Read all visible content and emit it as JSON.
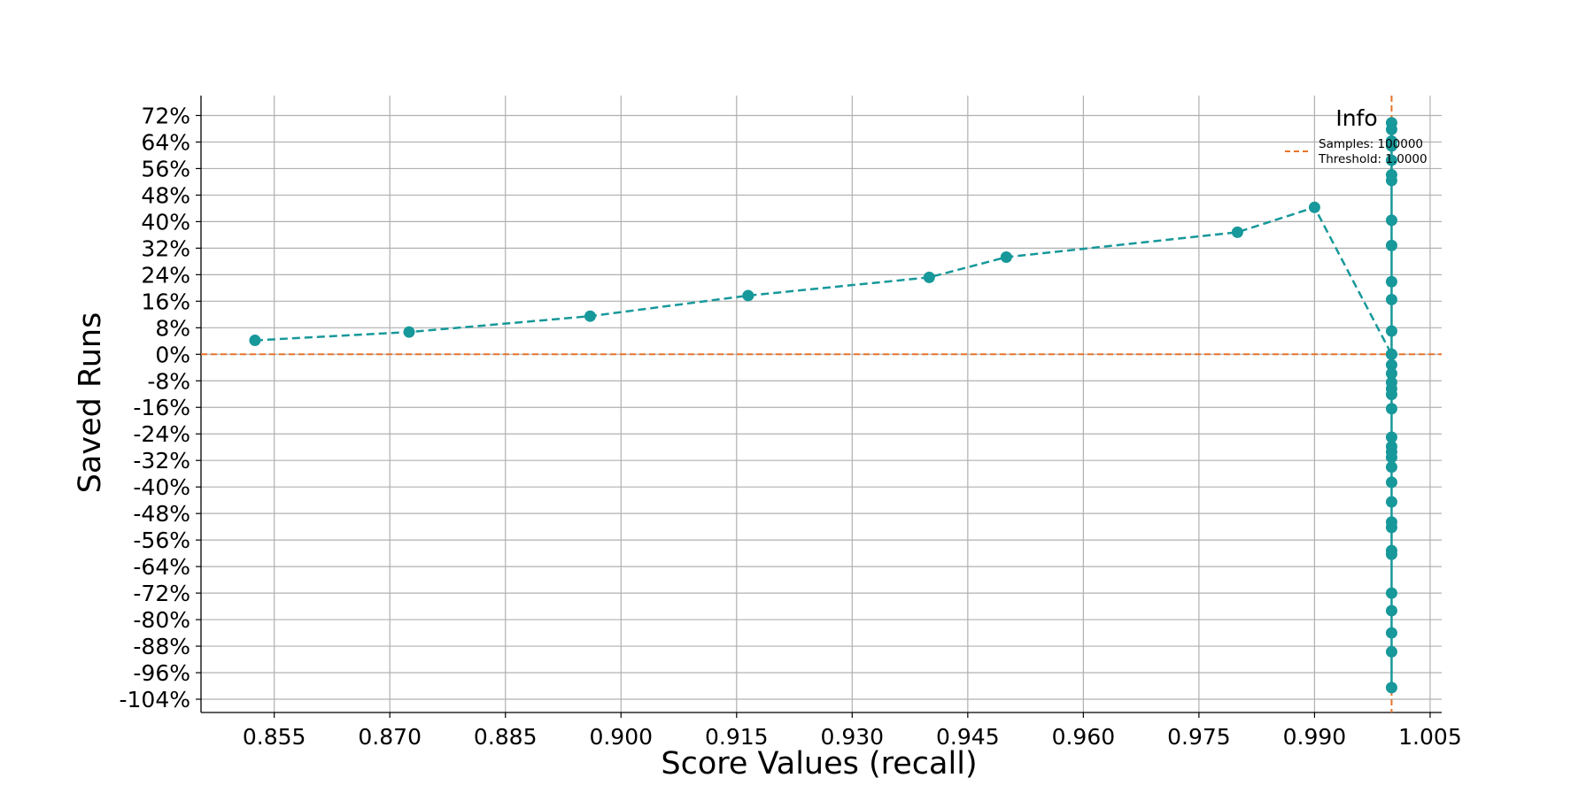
{
  "chart_data": {
    "type": "line",
    "title": "",
    "xlabel": "Score Values (recall)",
    "ylabel": "Saved Runs",
    "xlim": [
      0.8455,
      1.0065
    ],
    "ylim": [
      -108,
      78
    ],
    "x_ticks": [
      "0.855",
      "0.870",
      "0.885",
      "0.900",
      "0.915",
      "0.930",
      "0.945",
      "0.960",
      "0.975",
      "0.990",
      "1.005"
    ],
    "y_ticks": [
      "72%",
      "64%",
      "56%",
      "48%",
      "40%",
      "32%",
      "24%",
      "16%",
      "8%",
      "0%",
      "-8%",
      "-16%",
      "-24%",
      "-32%",
      "-40%",
      "-48%",
      "-56%",
      "-64%",
      "-72%",
      "-80%",
      "-88%",
      "-96%",
      "-104%"
    ],
    "y_tick_values": [
      72,
      64,
      56,
      48,
      40,
      32,
      24,
      16,
      8,
      0,
      -8,
      -16,
      -24,
      -32,
      -40,
      -48,
      -56,
      -64,
      -72,
      -80,
      -88,
      -96,
      -104
    ],
    "x_tick_values": [
      0.855,
      0.87,
      0.885,
      0.9,
      0.915,
      0.93,
      0.945,
      0.96,
      0.975,
      0.99,
      1.005
    ],
    "grid": true,
    "legend": {
      "title": "Info",
      "placement": "top-right",
      "entries": [
        "Samples: 100000",
        "Threshold: 1.0000"
      ]
    },
    "reference_lines": {
      "horizontal_y": 0,
      "vertical_x": 1.0,
      "color": "#e8742a"
    },
    "series": [
      {
        "style": "dashed",
        "color": "#17989a",
        "x": [
          0.8525,
          0.8725,
          0.896,
          0.9165,
          0.94,
          0.95,
          0.98,
          0.99,
          1.0
        ],
        "y": [
          4.2,
          6.7,
          11.5,
          17.7,
          23.2,
          29.3,
          36.8,
          44.3,
          0
        ]
      },
      {
        "style": "solid",
        "color": "#17989a",
        "x": [
          1.0,
          1.0,
          1.0,
          1.0,
          1.0,
          1.0,
          1.0,
          1.0,
          1.0,
          1.0,
          1.0,
          1.0,
          1.0,
          1.0,
          1.0,
          1.0,
          1.0,
          1.0,
          1.0,
          1.0,
          1.0,
          1.0,
          1.0,
          1.0,
          1.0,
          1.0,
          1.0,
          1.0,
          1.0,
          1.0,
          1.0,
          1.0,
          1.0,
          1.0,
          1.0
        ],
        "y": [
          69.8,
          67.8,
          64.3,
          58.5,
          52.4,
          40.4,
          32.8,
          21.9,
          16.5,
          7.0,
          0,
          -3.2,
          -8.5,
          -10.4,
          -16.4,
          -27.8,
          -29.4,
          -31.1,
          -34.0,
          -38.6,
          -44.5,
          -50.6,
          -52.2,
          -59.2,
          -60.3,
          -72.0,
          -77.3,
          -84.0,
          -89.7,
          -100.5,
          62.8,
          54.1,
          -5.8,
          -12.1,
          -25.0
        ]
      }
    ]
  }
}
